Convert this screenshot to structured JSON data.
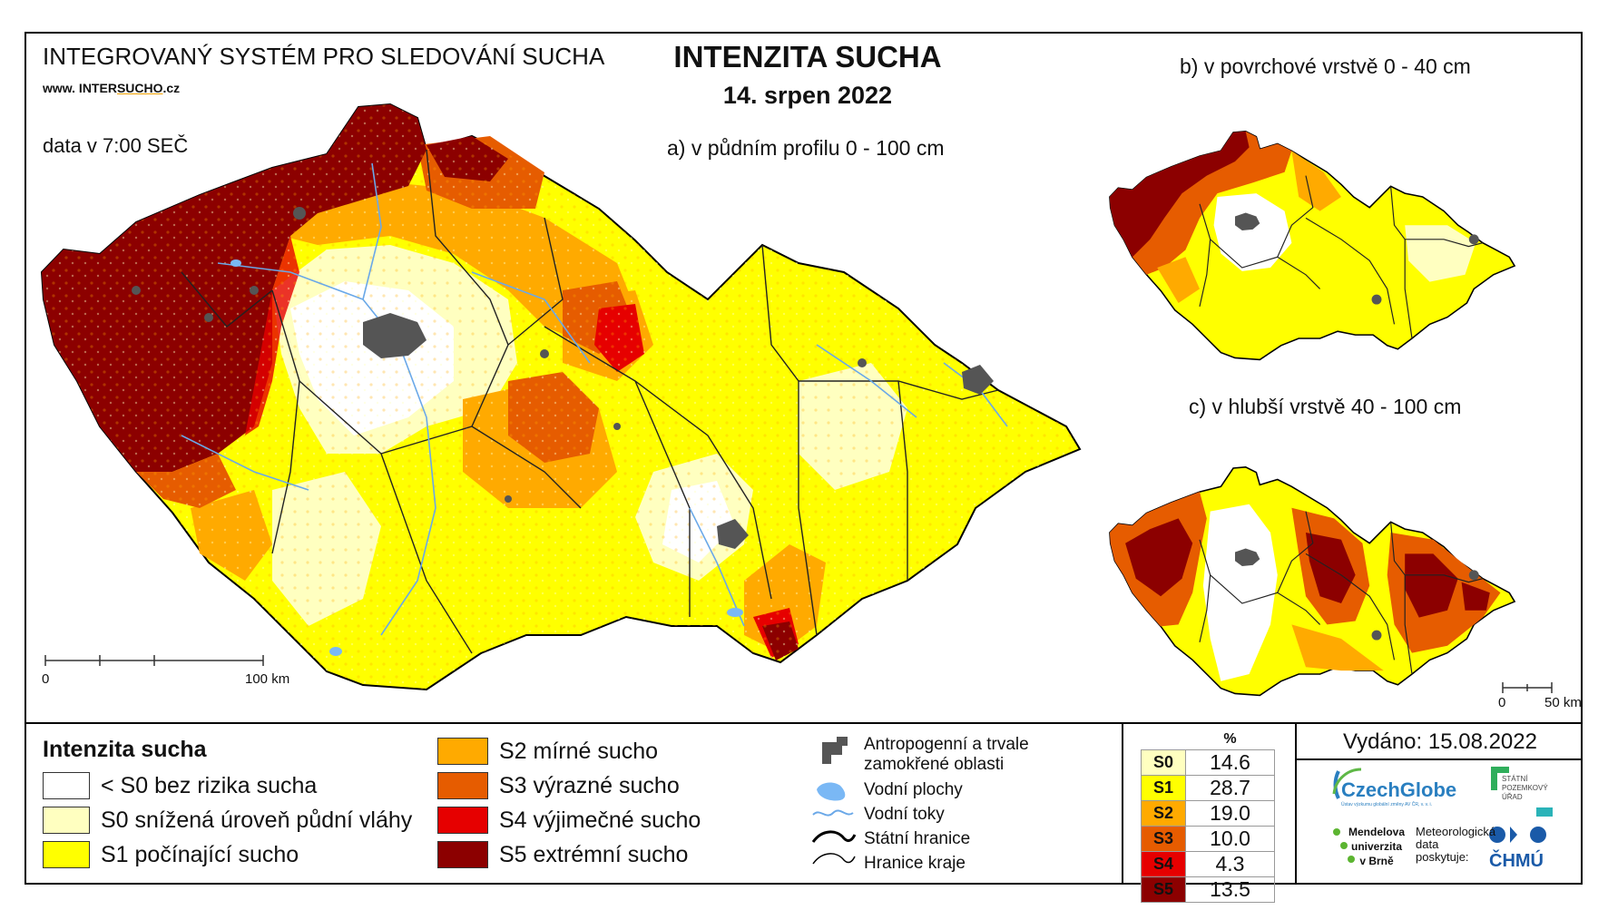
{
  "header": {
    "system_name": "INTEGROVANÝ SYSTÉM PRO SLEDOVÁNÍ SUCHA",
    "url_prefix": "www. INTER",
    "url_brand": "SUCHO",
    "url_suffix": ".cz",
    "data_time": "data v 7:00 SEČ",
    "title": "INTENZITA SUCHA",
    "date": "14. srpen 2022"
  },
  "maps": {
    "main_label": "a) v půdním profilu 0 - 100 cm",
    "top_label": "b) v povrchové vrstvě 0 - 40 cm",
    "bottom_label": "c) v hlubší vrstvě 40 - 100 cm",
    "main_scale_start": "0",
    "main_scale_end": "100 km",
    "small_scale_start": "0",
    "small_scale_end": "50 km"
  },
  "legend": {
    "title": "Intenzita sucha",
    "classes": [
      {
        "label": "< S0 bez rizika sucha",
        "color": "#ffffff"
      },
      {
        "label": "S0 snížená úroveň půdní vláhy",
        "color": "#ffffc0"
      },
      {
        "label": "S1 počínající sucho",
        "color": "#ffff00"
      },
      {
        "label": "S2 mírné sucho",
        "color": "#ffaa00"
      },
      {
        "label": "S3 výrazné sucho",
        "color": "#e65c00"
      },
      {
        "label": "S4 výjimečné sucho",
        "color": "#e60000"
      },
      {
        "label": "S5 extrémní sucho",
        "color": "#8c0000"
      }
    ],
    "symbols": [
      {
        "label": "Antropogenní a trvale zamokřené oblasti",
        "line1": "Antropogenní a trvale",
        "line2": "zamokřené oblasti",
        "icon": "urban-area-icon"
      },
      {
        "label": "Vodní plochy",
        "icon": "water-body-icon"
      },
      {
        "label": "Vodní toky",
        "icon": "river-icon"
      },
      {
        "label": "Státní hranice",
        "icon": "state-border-icon"
      },
      {
        "label": "Hranice kraje",
        "icon": "region-border-icon"
      }
    ]
  },
  "stats": {
    "header": "%",
    "rows": [
      {
        "code": "S0",
        "value": "14.6",
        "color": "#ffffc0"
      },
      {
        "code": "S1",
        "value": "28.7",
        "color": "#ffff00"
      },
      {
        "code": "S2",
        "value": "19.0",
        "color": "#ffaa00"
      },
      {
        "code": "S3",
        "value": "10.0",
        "color": "#e65c00"
      },
      {
        "code": "S4",
        "value": "4.3",
        "color": "#e60000"
      },
      {
        "code": "S5",
        "value": "13.5",
        "color": "#8c0000"
      }
    ]
  },
  "footer": {
    "issued": "Vydáno: 15.08.2022",
    "czechglobe_name": "CzechGlobe",
    "czechglobe_sub": "Ústav výzkumu globální změny AV ČR, v. v. i.",
    "spu_line1": "STÁTNÍ",
    "spu_line2": "POZEMKOVÝ",
    "spu_line3": "ÚŘAD",
    "mendelu_line1": "Mendelova",
    "mendelu_line2": "univerzita",
    "mendelu_line3": "v Brně",
    "meteo_line1": "Meteorologická",
    "meteo_line2": "data",
    "meteo_line3": "poskytuje:",
    "chmu_name": "ČHMÚ"
  }
}
